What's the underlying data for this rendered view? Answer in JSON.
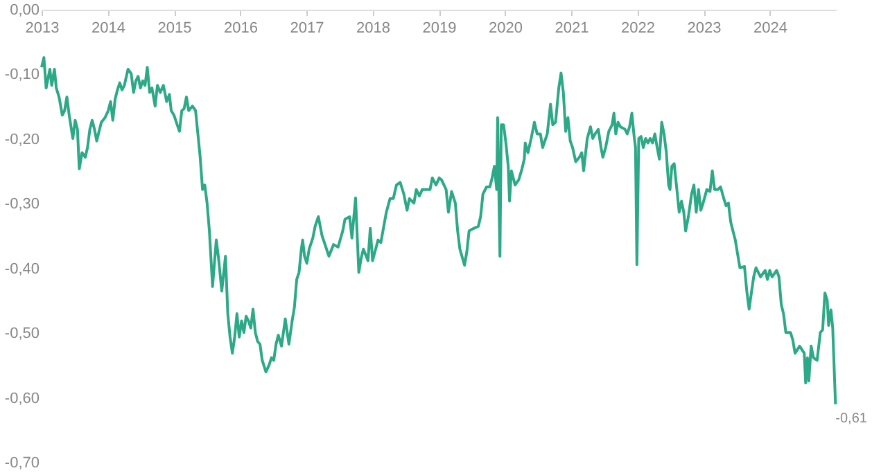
{
  "chart_data": {
    "type": "line",
    "x": [
      2013.0,
      2013.035,
      2013.069,
      2013.125,
      2013.153,
      2013.194,
      2013.222,
      2013.264,
      2013.313,
      2013.347,
      2013.382,
      2013.417,
      2013.472,
      2013.507,
      2013.542,
      2013.569,
      2013.611,
      2013.66,
      2013.694,
      2013.729,
      2013.764,
      2013.799,
      2013.833,
      2013.868,
      2013.903,
      2013.958,
      2014.007,
      2014.042,
      2014.076,
      2014.111,
      2014.146,
      2014.181,
      2014.215,
      2014.25,
      2014.306,
      2014.354,
      2014.389,
      2014.424,
      2014.458,
      2014.493,
      2014.528,
      2014.563,
      2014.597,
      2014.632,
      2014.667,
      2014.715,
      2014.75,
      2014.792,
      2014.84,
      2014.889,
      2014.931,
      2014.958,
      2015.0,
      2015.049,
      2015.083,
      2015.118,
      2015.153,
      2015.188,
      2015.222,
      2015.278,
      2015.326,
      2015.361,
      2015.396,
      2015.431,
      2015.465,
      2015.5,
      2015.535,
      2015.583,
      2015.639,
      2015.674,
      2015.722,
      2015.778,
      2015.813,
      2015.847,
      2015.882,
      2015.917,
      2015.951,
      2015.986,
      2016.021,
      2016.056,
      2016.09,
      2016.125,
      2016.16,
      2016.194,
      2016.229,
      2016.264,
      2016.299,
      2016.333,
      2016.389,
      2016.438,
      2016.472,
      2016.507,
      2016.542,
      2016.576,
      2016.625,
      2016.681,
      2016.736,
      2016.785,
      2016.819,
      2016.854,
      2016.889,
      2016.924,
      2016.944,
      2016.972,
      2017.007,
      2017.042,
      2017.097,
      2017.132,
      2017.181,
      2017.236,
      2017.34,
      2017.41,
      2017.479,
      2017.549,
      2017.583,
      2017.653,
      2017.688,
      2017.743,
      2017.792,
      2017.826,
      2017.861,
      2017.931,
      2017.965,
      2018.0,
      2018.083,
      2018.125,
      2018.208,
      2018.264,
      2018.313,
      2018.361,
      2018.417,
      2018.472,
      2018.521,
      2018.556,
      2018.625,
      2018.66,
      2018.708,
      2018.75,
      2018.868,
      2018.903,
      2018.958,
      2019.007,
      2019.042,
      2019.111,
      2019.146,
      2019.194,
      2019.25,
      2019.285,
      2019.319,
      2019.389,
      2019.424,
      2019.458,
      2019.528,
      2019.597,
      2019.632,
      2019.667,
      2019.722,
      2019.771,
      2019.806,
      2019.84,
      2019.875,
      2019.889,
      2019.924,
      2019.944,
      2019.979,
      2020.014,
      2020.049,
      2020.069,
      2020.097,
      2020.153,
      2020.208,
      2020.257,
      2020.292,
      2020.306,
      2020.347,
      2020.396,
      2020.444,
      2020.486,
      2020.535,
      2020.569,
      2020.639,
      2020.688,
      2020.722,
      2020.764,
      2020.813,
      2020.847,
      2020.882,
      2020.917,
      2020.951,
      2020.986,
      2021.021,
      2021.069,
      2021.125,
      2021.16,
      2021.188,
      2021.243,
      2021.292,
      2021.326,
      2021.361,
      2021.41,
      2021.451,
      2021.479,
      2021.521,
      2021.569,
      2021.618,
      2021.646,
      2021.674,
      2021.708,
      2021.743,
      2021.813,
      2021.847,
      2021.882,
      2021.917,
      2021.951,
      2021.972,
      2021.993,
      2022.021,
      2022.056,
      2022.09,
      2022.125,
      2022.16,
      2022.194,
      2022.229,
      2022.264,
      2022.299,
      2022.333,
      2022.368,
      2022.403,
      2022.438,
      2022.472,
      2022.493,
      2022.521,
      2022.556,
      2022.59,
      2022.632,
      2022.667,
      2022.701,
      2022.729,
      2022.771,
      2022.819,
      2022.854,
      2022.889,
      2022.924,
      2022.958,
      2022.993,
      2023.049,
      2023.097,
      2023.132,
      2023.167,
      2023.215,
      2023.257,
      2023.306,
      2023.34,
      2023.375,
      2023.41,
      2023.444,
      2023.479,
      2023.549,
      2023.618,
      2023.653,
      2023.688,
      2023.722,
      2023.757,
      2023.792,
      2023.861,
      2023.931,
      2023.965,
      2024.0,
      2024.035,
      2024.104,
      2024.139,
      2024.174,
      2024.208,
      2024.243,
      2024.313,
      2024.347,
      2024.382,
      2024.451,
      2024.521,
      2024.542,
      2024.569,
      2024.59,
      2024.625,
      2024.66,
      2024.715,
      2024.764,
      2024.799,
      2024.833,
      2024.868,
      2024.889,
      2024.924,
      2024.951,
      2024.993
    ],
    "series": [
      {
        "color": "#2ea987",
        "values": [
          -0.089,
          -0.074,
          -0.121,
          -0.092,
          -0.117,
          -0.092,
          -0.121,
          -0.135,
          -0.163,
          -0.156,
          -0.135,
          -0.163,
          -0.199,
          -0.171,
          -0.185,
          -0.246,
          -0.221,
          -0.228,
          -0.213,
          -0.185,
          -0.171,
          -0.185,
          -0.203,
          -0.188,
          -0.174,
          -0.167,
          -0.156,
          -0.142,
          -0.171,
          -0.138,
          -0.124,
          -0.113,
          -0.124,
          -0.117,
          -0.092,
          -0.099,
          -0.128,
          -0.11,
          -0.103,
          -0.121,
          -0.11,
          -0.117,
          -0.089,
          -0.128,
          -0.121,
          -0.149,
          -0.117,
          -0.128,
          -0.117,
          -0.142,
          -0.131,
          -0.156,
          -0.163,
          -0.178,
          -0.188,
          -0.156,
          -0.153,
          -0.135,
          -0.156,
          -0.149,
          -0.156,
          -0.192,
          -0.228,
          -0.278,
          -0.271,
          -0.299,
          -0.342,
          -0.428,
          -0.356,
          -0.385,
          -0.435,
          -0.381,
          -0.47,
          -0.506,
          -0.531,
          -0.506,
          -0.47,
          -0.506,
          -0.481,
          -0.499,
          -0.474,
          -0.481,
          -0.492,
          -0.463,
          -0.499,
          -0.513,
          -0.517,
          -0.542,
          -0.56,
          -0.549,
          -0.538,
          -0.542,
          -0.517,
          -0.503,
          -0.52,
          -0.478,
          -0.517,
          -0.481,
          -0.46,
          -0.417,
          -0.406,
          -0.37,
          -0.356,
          -0.381,
          -0.392,
          -0.37,
          -0.353,
          -0.335,
          -0.32,
          -0.349,
          -0.381,
          -0.363,
          -0.367,
          -0.342,
          -0.324,
          -0.32,
          -0.353,
          -0.291,
          -0.406,
          -0.385,
          -0.37,
          -0.388,
          -0.338,
          -0.388,
          -0.356,
          -0.36,
          -0.313,
          -0.292,
          -0.292,
          -0.271,
          -0.267,
          -0.285,
          -0.31,
          -0.292,
          -0.299,
          -0.278,
          -0.288,
          -0.278,
          -0.278,
          -0.26,
          -0.271,
          -0.26,
          -0.263,
          -0.278,
          -0.313,
          -0.281,
          -0.299,
          -0.342,
          -0.37,
          -0.395,
          -0.374,
          -0.342,
          -0.338,
          -0.335,
          -0.32,
          -0.285,
          -0.274,
          -0.274,
          -0.26,
          -0.242,
          -0.278,
          -0.167,
          -0.381,
          -0.178,
          -0.178,
          -0.206,
          -0.242,
          -0.296,
          -0.249,
          -0.271,
          -0.263,
          -0.246,
          -0.231,
          -0.206,
          -0.221,
          -0.199,
          -0.174,
          -0.192,
          -0.192,
          -0.213,
          -0.192,
          -0.146,
          -0.178,
          -0.174,
          -0.121,
          -0.098,
          -0.128,
          -0.188,
          -0.167,
          -0.203,
          -0.213,
          -0.235,
          -0.228,
          -0.221,
          -0.249,
          -0.199,
          -0.181,
          -0.199,
          -0.192,
          -0.185,
          -0.213,
          -0.228,
          -0.213,
          -0.188,
          -0.178,
          -0.16,
          -0.192,
          -0.174,
          -0.181,
          -0.185,
          -0.192,
          -0.181,
          -0.16,
          -0.196,
          -0.213,
          -0.394,
          -0.199,
          -0.196,
          -0.213,
          -0.199,
          -0.206,
          -0.199,
          -0.206,
          -0.192,
          -0.213,
          -0.231,
          -0.174,
          -0.192,
          -0.221,
          -0.271,
          -0.278,
          -0.242,
          -0.238,
          -0.271,
          -0.313,
          -0.296,
          -0.313,
          -0.342,
          -0.32,
          -0.285,
          -0.271,
          -0.313,
          -0.278,
          -0.31,
          -0.299,
          -0.278,
          -0.281,
          -0.249,
          -0.278,
          -0.278,
          -0.274,
          -0.292,
          -0.303,
          -0.299,
          -0.328,
          -0.342,
          -0.356,
          -0.399,
          -0.397,
          -0.435,
          -0.463,
          -0.438,
          -0.413,
          -0.399,
          -0.413,
          -0.403,
          -0.417,
          -0.403,
          -0.413,
          -0.403,
          -0.413,
          -0.456,
          -0.47,
          -0.499,
          -0.499,
          -0.51,
          -0.531,
          -0.52,
          -0.531,
          -0.577,
          -0.538,
          -0.574,
          -0.52,
          -0.538,
          -0.542,
          -0.499,
          -0.495,
          -0.438,
          -0.449,
          -0.488,
          -0.464,
          -0.492,
          -0.61
        ]
      }
    ],
    "xlim": [
      2013,
      2025
    ],
    "xticks": [
      2013,
      2014,
      2015,
      2016,
      2017,
      2018,
      2019,
      2020,
      2021,
      2022,
      2023,
      2024
    ],
    "ylim": [
      -0.7,
      0
    ],
    "yticks": [
      {
        "value": 0,
        "label": "0,00"
      },
      {
        "value": -0.1,
        "label": "-0,10"
      },
      {
        "value": -0.2,
        "label": "-0,20"
      },
      {
        "value": -0.3,
        "label": "-0,30"
      },
      {
        "value": -0.4,
        "label": "-0,40"
      },
      {
        "value": -0.5,
        "label": "-0,50"
      },
      {
        "value": -0.6,
        "label": "-0,60"
      },
      {
        "value": -0.7,
        "label": "-0,70"
      }
    ],
    "annotations": [
      {
        "text": "-0,61",
        "x": 2024.993,
        "y": -0.61
      }
    ],
    "grid": false,
    "line_style": "solid"
  }
}
